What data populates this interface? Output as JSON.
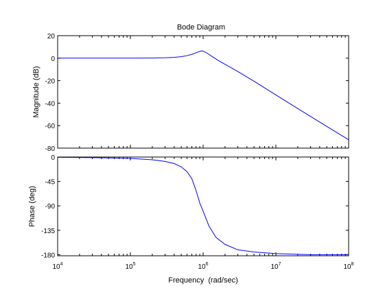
{
  "chart_data": [
    {
      "type": "line",
      "title": "Bode Diagram",
      "ylabel": "Magnitude (dB)",
      "xscale": "log",
      "xlim": [
        10000,
        100000000
      ],
      "ylim": [
        -80,
        20
      ],
      "yticks": [
        {
          "value": 20,
          "label": "20"
        },
        {
          "value": 0,
          "label": "0"
        },
        {
          "value": -20,
          "label": "-20"
        },
        {
          "value": -40,
          "label": "-40"
        },
        {
          "value": -60,
          "label": "-60"
        },
        {
          "value": -80,
          "label": "-80"
        }
      ],
      "line_color": "#0000ff",
      "series": [
        {
          "x": [
            10000,
            30000,
            100000,
            200000,
            300000,
            400000,
            500000,
            600000,
            700000,
            800000,
            900000,
            950000,
            1000000,
            1100000,
            1300000,
            1600000,
            2000000,
            3000000,
            5000000,
            10000000,
            20000000,
            50000000,
            100000000
          ],
          "y": [
            0,
            0,
            0,
            0.1,
            0.3,
            0.7,
            1.3,
            2.2,
            3.4,
            4.8,
            6.0,
            6.4,
            6.3,
            4.9,
            1.9,
            -1.9,
            -5.5,
            -11.9,
            -20.5,
            -32.7,
            -44.8,
            -60.7,
            -72.6
          ]
        }
      ]
    },
    {
      "type": "line",
      "ylabel": "Phase (deg)",
      "xlabel": "Frequency  (rad/sec)",
      "xscale": "log",
      "xlim": [
        10000,
        100000000
      ],
      "ylim": [
        -182,
        0
      ],
      "xticks": [
        {
          "value": 10000,
          "base": "10",
          "exp": "4"
        },
        {
          "value": 100000,
          "base": "10",
          "exp": "5"
        },
        {
          "value": 1000000,
          "base": "10",
          "exp": "6"
        },
        {
          "value": 10000000,
          "base": "10",
          "exp": "7"
        },
        {
          "value": 100000000,
          "base": "10",
          "exp": "8"
        }
      ],
      "yticks": [
        {
          "value": 0,
          "label": "0"
        },
        {
          "value": -45,
          "label": "-45"
        },
        {
          "value": -90,
          "label": "-90"
        },
        {
          "value": -135,
          "label": "-135"
        },
        {
          "value": -180,
          "label": "-180"
        }
      ],
      "line_color": "#0000ff",
      "series": [
        {
          "x": [
            10000,
            20000,
            50000,
            100000,
            200000,
            300000,
            400000,
            500000,
            600000,
            700000,
            800000,
            900000,
            1000000,
            1200000,
            1500000,
            2000000,
            3000000,
            5000000,
            10000000,
            30000000,
            100000000
          ],
          "y": [
            -0.5,
            -0.8,
            -1.6,
            -2.5,
            -5,
            -8,
            -12,
            -18,
            -27,
            -40,
            -62,
            -85,
            -100,
            -127,
            -148,
            -161,
            -171,
            -175,
            -178,
            -180,
            -180
          ]
        }
      ]
    }
  ]
}
